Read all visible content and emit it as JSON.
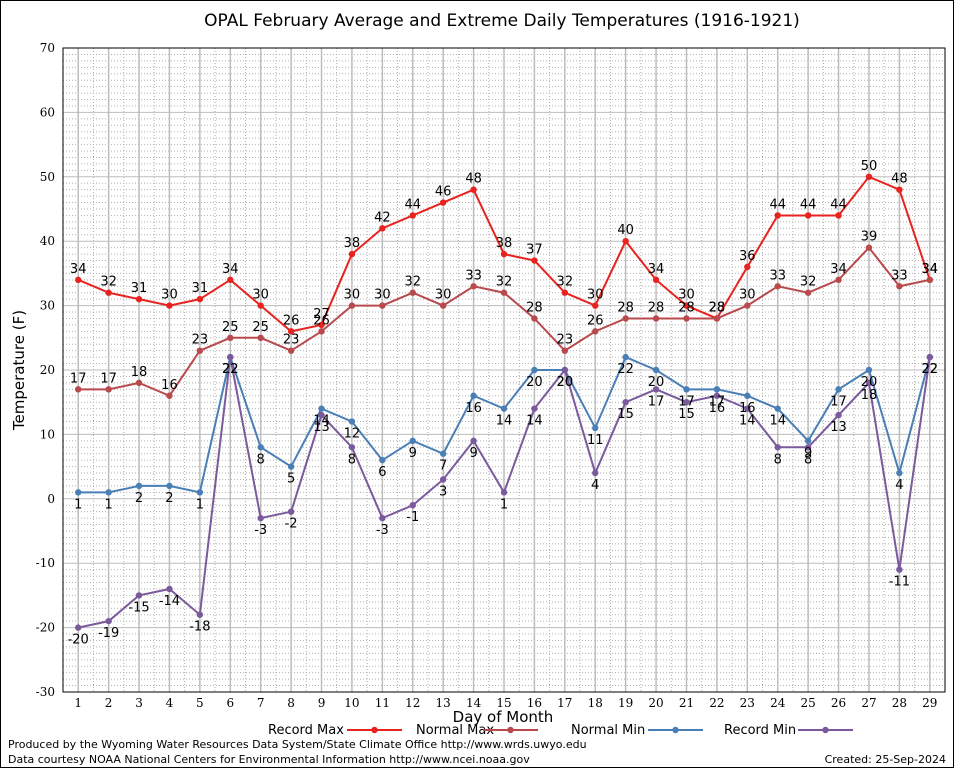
{
  "chart_data": {
    "type": "line",
    "title": "OPAL February Average and Extreme Daily Temperatures (1916-1921)",
    "xlabel": "Day of Month",
    "ylabel": "Temperature (F)",
    "ylim": [
      -30,
      70
    ],
    "yticks": [
      -30,
      -20,
      -10,
      0,
      10,
      20,
      30,
      40,
      50,
      60,
      70
    ],
    "x": [
      1,
      2,
      3,
      4,
      5,
      6,
      7,
      8,
      9,
      10,
      11,
      12,
      13,
      14,
      15,
      16,
      17,
      18,
      19,
      20,
      21,
      22,
      23,
      24,
      25,
      26,
      27,
      28,
      29
    ],
    "grid": true,
    "legend_position": "bottom",
    "series": [
      {
        "name": "Record Max",
        "color": "#e8231f",
        "values": [
          34,
          32,
          31,
          30,
          31,
          34,
          30,
          26,
          27,
          38,
          42,
          44,
          46,
          48,
          38,
          37,
          32,
          30,
          40,
          34,
          30,
          28,
          36,
          44,
          44,
          44,
          50,
          48,
          34
        ]
      },
      {
        "name": "Normal Max",
        "color": "#b84a4d",
        "values": [
          17,
          17,
          18,
          16,
          23,
          25,
          25,
          23,
          26,
          30,
          30,
          32,
          30,
          33,
          32,
          28,
          23,
          26,
          28,
          28,
          28,
          28,
          30,
          33,
          32,
          34,
          39,
          33,
          34
        ]
      },
      {
        "name": "Normal Min",
        "color": "#4a7fb5",
        "values": [
          1,
          1,
          2,
          2,
          1,
          22,
          8,
          5,
          14,
          12,
          6,
          9,
          7,
          16,
          14,
          20,
          20,
          11,
          22,
          20,
          17,
          17,
          16,
          14,
          9,
          17,
          20,
          4,
          22
        ]
      },
      {
        "name": "Record Min",
        "color": "#7a5a9c",
        "values": [
          -20,
          -19,
          -15,
          -14,
          -18,
          22,
          -3,
          -2,
          13,
          8,
          -3,
          -1,
          3,
          9,
          1,
          14,
          20,
          4,
          15,
          17,
          15,
          16,
          14,
          8,
          8,
          13,
          18,
          -11,
          22
        ]
      }
    ]
  },
  "footer": {
    "produced_by": "Produced by the Wyoming Water Resources Data System/State Climate Office http://www.wrds.uwyo.edu",
    "courtesy": "Data courtesy NOAA National Centers for Environmental Information http://www.ncei.noaa.gov",
    "created": "Created:  25-Sep-2024"
  }
}
